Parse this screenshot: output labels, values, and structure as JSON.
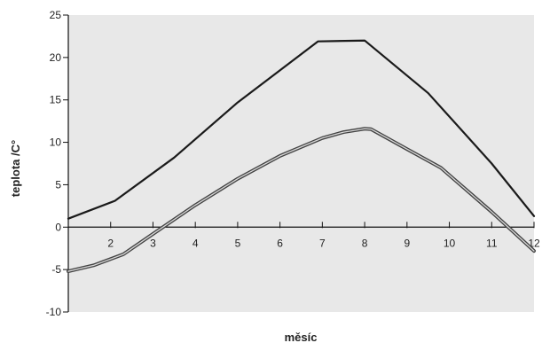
{
  "chart_data": {
    "type": "line",
    "xlabel": "měsíc",
    "ylabel": "teplota /C°",
    "xlim": [
      1,
      12
    ],
    "ylim": [
      -10,
      25
    ],
    "x_ticks": [
      2,
      3,
      4,
      5,
      6,
      7,
      8,
      9,
      10,
      11,
      12
    ],
    "y_ticks": [
      -10,
      -5,
      0,
      5,
      10,
      15,
      20,
      25
    ],
    "x_tick_labels": [
      "2",
      "3",
      "4",
      "5",
      "6",
      "7",
      "8",
      "9",
      "10",
      "11",
      "12"
    ],
    "y_tick_labels": [
      "-10",
      "-5",
      "0",
      "5",
      "10",
      "15",
      "20",
      "25"
    ],
    "grid": false,
    "plot_background": "#e8e8e8",
    "series": [
      {
        "color": "#1a1a1a",
        "points": [
          [
            1,
            1
          ],
          [
            2.1,
            3.1
          ],
          [
            3.5,
            8.2
          ],
          [
            5,
            14.7
          ],
          [
            6.9,
            21.9
          ],
          [
            8,
            22
          ],
          [
            9.5,
            15.8
          ],
          [
            11,
            7.5
          ],
          [
            12,
            1.3
          ]
        ]
      },
      {
        "color": "#444444",
        "double_line": true,
        "points": [
          [
            1,
            -5.2
          ],
          [
            1.6,
            -4.5
          ],
          [
            2.3,
            -3.2
          ],
          [
            3,
            -0.8
          ],
          [
            4,
            2.6
          ],
          [
            5,
            5.7
          ],
          [
            6,
            8.4
          ],
          [
            7,
            10.5
          ],
          [
            7.5,
            11.2
          ],
          [
            8,
            11.6
          ],
          [
            8.15,
            11.55
          ],
          [
            9,
            9.2
          ],
          [
            9.8,
            7
          ],
          [
            11,
            1.8
          ],
          [
            12,
            -2.8
          ]
        ]
      }
    ]
  }
}
